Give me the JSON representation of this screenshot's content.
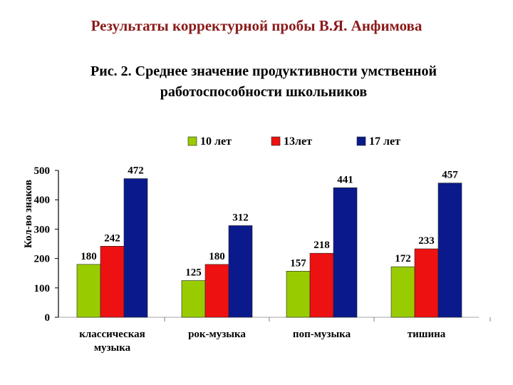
{
  "header": {
    "title": "Результаты корректурной пробы В.Я. Анфимова",
    "subtitle_line1": "Рис. 2. Среднее значение продуктивности умственной",
    "subtitle_line2": "работоспособности школьников"
  },
  "chart_data": {
    "type": "bar",
    "ylabel": "Кол-во знаков",
    "ylim": [
      0,
      500
    ],
    "yticks": [
      0,
      100,
      200,
      300,
      400,
      500
    ],
    "categories": [
      [
        "классическая",
        "музыка"
      ],
      [
        "рок-музыка"
      ],
      [
        "поп-музыка"
      ],
      [
        "тишина"
      ]
    ],
    "legend_position": "top",
    "grid": false,
    "series": [
      {
        "name": "10 лет",
        "color": "#99cc00",
        "values": [
          180,
          125,
          157,
          172
        ]
      },
      {
        "name": "13лет",
        "color": "#ee1111",
        "values": [
          242,
          180,
          218,
          233
        ]
      },
      {
        "name": "17 лет",
        "color": "#0a1a8c",
        "values": [
          472,
          312,
          441,
          457
        ]
      }
    ]
  }
}
